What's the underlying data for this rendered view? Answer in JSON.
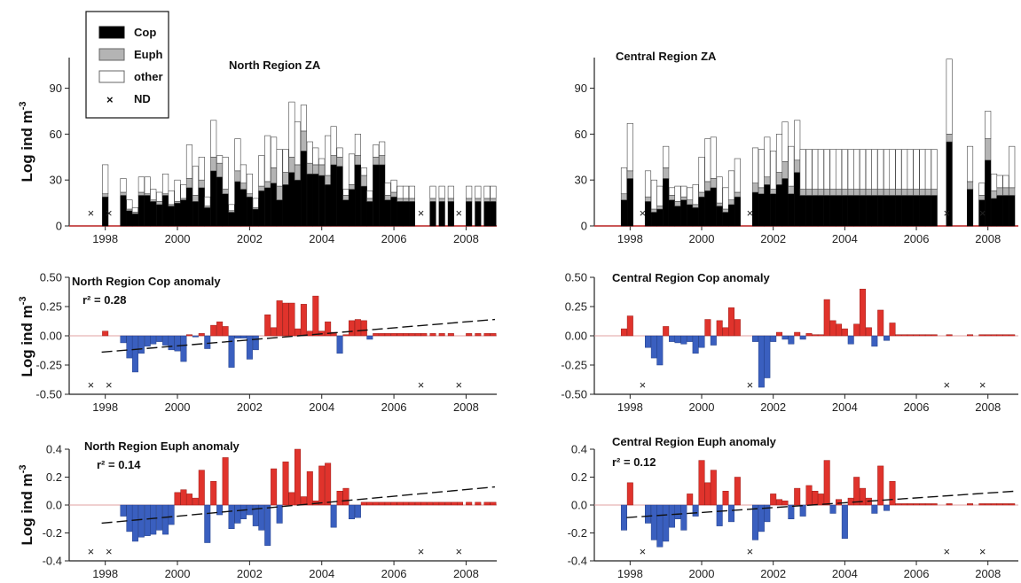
{
  "figure": {
    "ylabel_main": "Log ind m",
    "ylabel_sup": "-3",
    "legend": {
      "items": [
        {
          "label": "Cop",
          "fill": "#000000"
        },
        {
          "label": "Euph",
          "fill": "#b4b4b4"
        },
        {
          "label": "other",
          "fill": "#ffffff"
        },
        {
          "label": "ND",
          "marker": "×"
        }
      ]
    }
  },
  "chart_data": [
    {
      "id": "north-za",
      "type": "bar",
      "stacked": true,
      "title": "North Region ZA",
      "ylabel": "Log ind m-3",
      "xlim": [
        1997.0,
        2008.85
      ],
      "ylim": [
        0,
        110
      ],
      "yticks": [
        0,
        30,
        60,
        90
      ],
      "xticks": [
        1998,
        2000,
        2002,
        2004,
        2006,
        2008
      ],
      "series_names": [
        "Cop",
        "Euph",
        "other"
      ],
      "x": [
        1998.0,
        1998.5,
        1998.67,
        1998.83,
        1999.0,
        1999.17,
        1999.33,
        1999.5,
        1999.67,
        1999.83,
        2000.0,
        2000.17,
        2000.33,
        2000.5,
        2000.67,
        2000.83,
        2001.0,
        2001.17,
        2001.33,
        2001.5,
        2001.67,
        2001.83,
        2002.0,
        2002.17,
        2002.33,
        2002.5,
        2002.67,
        2002.83,
        2003.0,
        2003.17,
        2003.33,
        2003.5,
        2003.67,
        2003.83,
        2004.0,
        2004.17,
        2004.33,
        2004.5,
        2004.67,
        2004.83,
        2005.0,
        2005.17,
        2005.33,
        2005.5,
        2005.67,
        2005.83,
        2006.0,
        2006.17,
        2006.33,
        2006.5,
        2007.08,
        2007.33,
        2007.58,
        2008.08,
        2008.33,
        2008.58,
        2008.75
      ],
      "cop": [
        19,
        20,
        10,
        8,
        20,
        20,
        16,
        14,
        20,
        13,
        15,
        17,
        25,
        16,
        25,
        12,
        36,
        32,
        21,
        9,
        29,
        24,
        19,
        11,
        23,
        25,
        28,
        17,
        27,
        35,
        30,
        49,
        34,
        34,
        33,
        27,
        40,
        39,
        17,
        24,
        40,
        26,
        16,
        40,
        40,
        17,
        19,
        16,
        16,
        16,
        16,
        16,
        16,
        16,
        16,
        16,
        16
      ],
      "euph": [
        2,
        2,
        1,
        1,
        2,
        1,
        1,
        2,
        1,
        1,
        1,
        1,
        6,
        4,
        5,
        1,
        9,
        9,
        3,
        1,
        7,
        4,
        2,
        1,
        3,
        4,
        10,
        9,
        8,
        10,
        10,
        13,
        7,
        6,
        7,
        6,
        6,
        6,
        3,
        3,
        6,
        7,
        2,
        5,
        6,
        3,
        3,
        2,
        2,
        2,
        2,
        2,
        2,
        2,
        2,
        2,
        2
      ],
      "other": [
        19,
        9,
        6,
        3,
        10,
        11,
        7,
        6,
        13,
        9,
        14,
        9,
        22,
        19,
        15,
        6,
        24,
        5,
        21,
        4,
        21,
        12,
        13,
        6,
        20,
        30,
        20,
        24,
        15,
        36,
        28,
        17,
        14,
        11,
        4,
        26,
        19,
        6,
        4,
        20,
        14,
        5,
        5,
        8,
        9,
        8,
        8,
        8,
        8,
        8,
        8,
        8,
        8,
        8,
        8,
        8,
        8
      ],
      "nd": [
        1997.6,
        1998.1,
        2006.75,
        2007.8
      ]
    },
    {
      "id": "central-za",
      "type": "bar",
      "stacked": true,
      "title": "Central Region ZA",
      "ylabel": "",
      "xlim": [
        1997.0,
        2008.85
      ],
      "ylim": [
        0,
        110
      ],
      "yticks": [
        0,
        30,
        60,
        90
      ],
      "xticks": [
        1998,
        2000,
        2002,
        2004,
        2006,
        2008
      ],
      "series_names": [
        "Cop",
        "Euph",
        "other"
      ],
      "x": [
        1997.83,
        1998.0,
        1998.5,
        1998.67,
        1998.83,
        1999.0,
        1999.17,
        1999.33,
        1999.5,
        1999.67,
        1999.83,
        2000.0,
        2000.17,
        2000.33,
        2000.5,
        2000.67,
        2000.83,
        2001.0,
        2001.5,
        2001.67,
        2001.83,
        2002.0,
        2002.17,
        2002.33,
        2002.5,
        2002.67,
        2002.83,
        2003.0,
        2003.17,
        2003.33,
        2003.5,
        2003.67,
        2003.83,
        2004.0,
        2004.17,
        2004.33,
        2004.5,
        2004.67,
        2004.83,
        2005.0,
        2005.17,
        2005.33,
        2005.5,
        2005.67,
        2005.83,
        2006.0,
        2006.17,
        2006.33,
        2006.5,
        2006.92,
        2007.5,
        2007.83,
        2008.0,
        2008.17,
        2008.33,
        2008.5,
        2008.67
      ],
      "cop": [
        17,
        31,
        16,
        9,
        11,
        31,
        17,
        13,
        17,
        14,
        12,
        19,
        23,
        25,
        13,
        9,
        14,
        19,
        22,
        21,
        27,
        21,
        27,
        31,
        21,
        35,
        20,
        20,
        20,
        20,
        20,
        20,
        20,
        20,
        20,
        20,
        20,
        20,
        20,
        20,
        20,
        20,
        20,
        20,
        20,
        20,
        20,
        20,
        20,
        55,
        24,
        17,
        43,
        18,
        20,
        20,
        20
      ],
      "euph": [
        4,
        5,
        3,
        2,
        2,
        7,
        3,
        3,
        2,
        3,
        2,
        3,
        6,
        6,
        2,
        2,
        3,
        3,
        6,
        4,
        5,
        3,
        8,
        11,
        5,
        8,
        4,
        4,
        4,
        4,
        4,
        4,
        4,
        4,
        4,
        4,
        4,
        4,
        4,
        4,
        4,
        4,
        4,
        4,
        4,
        4,
        4,
        4,
        4,
        5,
        5,
        3,
        14,
        5,
        5,
        5,
        5
      ],
      "other": [
        17,
        31,
        17,
        19,
        13,
        14,
        5,
        10,
        7,
        8,
        13,
        23,
        28,
        27,
        17,
        14,
        19,
        22,
        23,
        25,
        26,
        25,
        25,
        26,
        26,
        26,
        26,
        26,
        26,
        26,
        26,
        26,
        26,
        26,
        26,
        26,
        26,
        26,
        26,
        26,
        26,
        26,
        26,
        26,
        26,
        26,
        26,
        26,
        26,
        49,
        23,
        8,
        18,
        11,
        8,
        8,
        27
      ],
      "nd": [
        1998.35,
        2001.35,
        2006.85,
        2007.85
      ]
    },
    {
      "id": "north-cop-anom",
      "type": "bar",
      "title": "North Region Cop anomaly",
      "annotation": "r² = 0.28",
      "ylabel": "Log ind m-3",
      "xlim": [
        1997.0,
        2008.85
      ],
      "ylim": [
        -0.5,
        0.5
      ],
      "yticks": [
        -0.5,
        -0.25,
        0.0,
        0.25,
        0.5
      ],
      "ytick_labels": [
        "-0.50",
        "-0.25",
        "0.00",
        "0.25",
        "0.50"
      ],
      "xticks": [
        1998,
        2000,
        2002,
        2004,
        2006,
        2008
      ],
      "x": [
        1998.0,
        1998.5,
        1998.67,
        1998.83,
        1999.0,
        1999.17,
        1999.33,
        1999.5,
        1999.67,
        1999.83,
        2000.0,
        2000.17,
        2000.33,
        2000.5,
        2000.67,
        2000.83,
        2001.0,
        2001.17,
        2001.33,
        2001.5,
        2001.67,
        2001.83,
        2002.0,
        2002.17,
        2002.33,
        2002.5,
        2002.67,
        2002.83,
        2003.0,
        2003.17,
        2003.33,
        2003.5,
        2003.67,
        2003.83,
        2004.0,
        2004.17,
        2004.33,
        2004.5,
        2004.67,
        2004.83,
        2005.0,
        2005.17,
        2005.33,
        2005.5,
        2005.67,
        2005.83,
        2006.0,
        2006.17,
        2006.33,
        2006.5,
        2006.67,
        2006.83,
        2007.08,
        2007.33,
        2007.58,
        2008.08,
        2008.33,
        2008.58,
        2008.75
      ],
      "values": [
        0.04,
        -0.06,
        -0.19,
        -0.31,
        -0.15,
        -0.09,
        -0.07,
        -0.05,
        -0.08,
        -0.12,
        -0.13,
        -0.22,
        0.01,
        -0.01,
        0.02,
        -0.11,
        0.09,
        0.12,
        0.08,
        -0.27,
        -0.02,
        -0.02,
        -0.2,
        -0.12,
        0.0,
        0.18,
        0.07,
        0.3,
        0.28,
        0.28,
        0.06,
        0.27,
        0.04,
        0.34,
        0.04,
        0.12,
        0.03,
        -0.15,
        0.01,
        0.13,
        0.14,
        0.13,
        -0.03,
        0.02,
        0.02,
        0.02,
        0.02,
        0.02,
        0.02,
        0.02,
        0.02,
        0.02,
        0.02,
        0.02,
        0.02,
        0.02,
        0.02,
        0.02,
        0.02
      ],
      "trend": {
        "x0": 1997.9,
        "y0": -0.14,
        "x1": 2008.8,
        "y1": 0.14
      },
      "nd": [
        1997.6,
        1998.1,
        2006.75,
        2007.8
      ]
    },
    {
      "id": "central-cop-anom",
      "type": "bar",
      "title": "Central Region Cop anomaly",
      "ylabel": "",
      "xlim": [
        1997.0,
        2008.85
      ],
      "ylim": [
        -0.5,
        0.5
      ],
      "yticks": [
        -0.5,
        -0.25,
        0.0,
        0.25,
        0.5
      ],
      "ytick_labels": [
        "-0.50",
        "-0.25",
        "0.00",
        "0.25",
        "0.50"
      ],
      "xticks": [
        1998,
        2000,
        2002,
        2004,
        2006,
        2008
      ],
      "x": [
        1997.83,
        1998.0,
        1998.5,
        1998.67,
        1998.83,
        1999.0,
        1999.17,
        1999.33,
        1999.5,
        1999.67,
        1999.83,
        2000.0,
        2000.17,
        2000.33,
        2000.5,
        2000.67,
        2000.83,
        2001.0,
        2001.5,
        2001.67,
        2001.83,
        2002.0,
        2002.17,
        2002.33,
        2002.5,
        2002.67,
        2002.83,
        2003.0,
        2003.17,
        2003.33,
        2003.5,
        2003.67,
        2003.83,
        2004.0,
        2004.17,
        2004.33,
        2004.5,
        2004.67,
        2004.83,
        2005.0,
        2005.17,
        2005.33,
        2005.5,
        2005.67,
        2005.83,
        2006.0,
        2006.17,
        2006.33,
        2006.5,
        2006.92,
        2007.5,
        2007.83,
        2008.0,
        2008.17,
        2008.33,
        2008.5,
        2008.67
      ],
      "values": [
        0.06,
        0.17,
        -0.1,
        -0.19,
        -0.25,
        0.08,
        -0.05,
        -0.06,
        -0.07,
        -0.05,
        -0.15,
        -0.1,
        0.14,
        -0.08,
        0.13,
        0.07,
        0.24,
        0.14,
        -0.05,
        -0.44,
        -0.36,
        -0.05,
        0.03,
        -0.03,
        -0.07,
        0.03,
        -0.03,
        0.02,
        0.01,
        0.01,
        0.31,
        0.13,
        0.1,
        0.06,
        -0.07,
        0.1,
        0.4,
        0.07,
        -0.09,
        0.22,
        -0.04,
        0.11,
        0.01,
        0.01,
        0.01,
        0.01,
        0.01,
        0.01,
        0.01,
        0.01,
        0.01,
        0.01,
        0.01,
        0.01,
        0.01,
        0.01,
        0.01
      ],
      "nd": [
        1998.35,
        2001.35,
        2006.85,
        2007.85
      ]
    },
    {
      "id": "north-euph-anom",
      "type": "bar",
      "title": "North Region Euph anomaly",
      "annotation": "r² = 0.14",
      "ylabel": "Log ind m-3",
      "xlim": [
        1997.0,
        2008.85
      ],
      "ylim": [
        -0.4,
        0.4
      ],
      "yticks": [
        -0.4,
        -0.2,
        0.0,
        0.2,
        0.4
      ],
      "ytick_labels": [
        "-0.4",
        "-0.2",
        "0.0",
        "0.2",
        "0.4"
      ],
      "xticks": [
        1998,
        2000,
        2002,
        2004,
        2006,
        2008
      ],
      "x": [
        1998.5,
        1998.67,
        1998.83,
        1999.0,
        1999.17,
        1999.33,
        1999.5,
        1999.67,
        1999.83,
        2000.0,
        2000.17,
        2000.33,
        2000.5,
        2000.67,
        2000.83,
        2001.0,
        2001.17,
        2001.33,
        2001.5,
        2001.67,
        2001.83,
        2002.0,
        2002.17,
        2002.33,
        2002.5,
        2002.67,
        2002.83,
        2003.0,
        2003.17,
        2003.33,
        2003.5,
        2003.67,
        2003.83,
        2004.0,
        2004.17,
        2004.33,
        2004.5,
        2004.67,
        2004.83,
        2005.0,
        2005.17,
        2005.33,
        2005.5,
        2005.67,
        2005.83,
        2006.0,
        2006.17,
        2006.33,
        2006.5,
        2006.67,
        2006.83,
        2007.0,
        2007.17,
        2007.33,
        2007.5,
        2007.67,
        2007.83,
        2008.08,
        2008.33,
        2008.58,
        2008.75
      ],
      "values": [
        -0.08,
        -0.19,
        -0.26,
        -0.23,
        -0.22,
        -0.21,
        -0.18,
        -0.21,
        -0.14,
        0.09,
        0.11,
        0.08,
        0.05,
        0.25,
        -0.27,
        0.17,
        -0.07,
        0.34,
        -0.17,
        -0.13,
        -0.1,
        -0.07,
        -0.15,
        -0.18,
        -0.29,
        0.26,
        -0.13,
        0.31,
        0.09,
        0.4,
        0.06,
        0.24,
        0.03,
        0.28,
        0.3,
        -0.16,
        0.1,
        0.12,
        -0.1,
        -0.09,
        0.02,
        0.02,
        0.02,
        0.02,
        0.02,
        0.02,
        0.02,
        0.02,
        0.02,
        0.02,
        0.02,
        0.02,
        0.02,
        0.02,
        0.02,
        0.02,
        0.02,
        0.02,
        0.02,
        0.02,
        0.02
      ],
      "trend": {
        "x0": 1997.9,
        "y0": -0.13,
        "x1": 2008.8,
        "y1": 0.13
      },
      "nd": [
        1997.6,
        1998.1,
        2006.75,
        2007.8
      ]
    },
    {
      "id": "central-euph-anom",
      "type": "bar",
      "title": "Central Region Euph anomaly",
      "annotation": "r² = 0.12",
      "ylabel": "",
      "xlim": [
        1997.0,
        2008.85
      ],
      "ylim": [
        -0.4,
        0.4
      ],
      "yticks": [
        -0.4,
        -0.2,
        0.0,
        0.2,
        0.4
      ],
      "ytick_labels": [
        "-0.4",
        "-0.2",
        "0.0",
        "0.2",
        "0.4"
      ],
      "xticks": [
        1998,
        2000,
        2002,
        2004,
        2006,
        2008
      ],
      "x": [
        1997.83,
        1998.0,
        1998.5,
        1998.67,
        1998.83,
        1999.0,
        1999.17,
        1999.33,
        1999.5,
        1999.67,
        1999.83,
        2000.0,
        2000.17,
        2000.33,
        2000.5,
        2000.67,
        2000.83,
        2001.0,
        2001.5,
        2001.67,
        2001.83,
        2002.0,
        2002.17,
        2002.33,
        2002.5,
        2002.67,
        2002.83,
        2003.0,
        2003.17,
        2003.33,
        2003.5,
        2003.67,
        2003.83,
        2004.0,
        2004.17,
        2004.33,
        2004.5,
        2004.67,
        2004.83,
        2005.0,
        2005.17,
        2005.33,
        2005.5,
        2005.67,
        2005.83,
        2006.0,
        2006.17,
        2006.33,
        2006.5,
        2006.92,
        2007.5,
        2007.83,
        2008.0,
        2008.17,
        2008.33,
        2008.5,
        2008.67
      ],
      "values": [
        -0.18,
        0.16,
        -0.13,
        -0.25,
        -0.3,
        -0.26,
        -0.16,
        -0.1,
        -0.18,
        0.08,
        -0.08,
        0.32,
        0.16,
        0.25,
        -0.15,
        0.1,
        -0.12,
        0.2,
        -0.25,
        -0.19,
        -0.12,
        0.08,
        0.04,
        0.03,
        -0.1,
        0.12,
        -0.08,
        0.14,
        0.1,
        0.08,
        0.32,
        -0.06,
        0.04,
        -0.24,
        0.05,
        0.2,
        0.12,
        0.05,
        -0.06,
        0.28,
        -0.04,
        0.17,
        0.01,
        0.01,
        0.01,
        0.01,
        0.01,
        0.01,
        0.01,
        0.01,
        0.01,
        0.01,
        0.01,
        0.01,
        0.01,
        0.01,
        0.01
      ],
      "trend": {
        "x0": 1997.9,
        "y0": -0.09,
        "x1": 2008.8,
        "y1": 0.1
      },
      "nd": [
        1998.35,
        2001.35,
        2006.85,
        2007.85
      ]
    }
  ]
}
